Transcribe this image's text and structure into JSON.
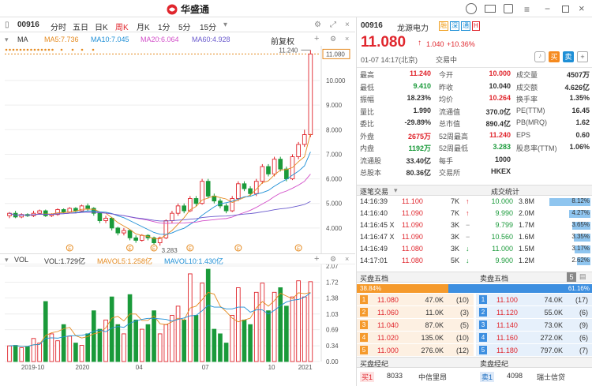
{
  "app": {
    "logo": "华盛通"
  },
  "toolbar": {
    "code": "00916",
    "tabs": [
      "分时",
      "五日",
      "日K",
      "周K",
      "月K",
      "1分",
      "5分",
      "15分"
    ],
    "active": "周K",
    "fq": "前复权"
  },
  "ma": {
    "label": "MA",
    "ma5": "MA5:7.736",
    "ma10": "MA10:7.045",
    "ma20": "MA20:6.064",
    "ma60": "MA60:4.928"
  },
  "vol": {
    "label": "VOL",
    "vol": "VOL:1.729亿",
    "mavol5": "MAVOL5:1.258亿",
    "mavol10": "MAVOL10:1.430亿"
  },
  "chart_data": {
    "type": "candlestick",
    "price_ticks": [
      "11.080",
      "10.000",
      "9.000",
      "8.000",
      "7.000",
      "6.000",
      "5.000",
      "4.000"
    ],
    "price_axis_values": [
      11.08,
      10,
      9,
      8,
      7,
      6,
      5,
      4
    ],
    "vol_ticks": [
      "2.07",
      "1.72",
      "1.38",
      "1.03",
      "0.69",
      "0.34",
      "0.00"
    ],
    "vol_axis_values": [
      2.07,
      1.72,
      1.38,
      1.03,
      0.69,
      0.34,
      0
    ],
    "x_ticks": [
      "2019-10",
      "2020",
      "04",
      "07",
      "10",
      "2021"
    ],
    "high_label": "11.240",
    "low_label": "3.283",
    "last_price": 11.08,
    "y_range": [
      3.0,
      11.35
    ],
    "vol_range": [
      0,
      2.07
    ],
    "candles": [
      [
        4.5,
        4.6,
        4.4,
        4.65
      ],
      [
        4.6,
        4.45,
        4.4,
        4.7
      ],
      [
        4.45,
        4.55,
        4.4,
        4.6
      ],
      [
        4.55,
        4.5,
        4.45,
        4.6
      ],
      [
        4.5,
        4.6,
        4.45,
        4.7
      ],
      [
        4.6,
        4.7,
        4.55,
        4.75
      ],
      [
        4.7,
        4.5,
        4.45,
        4.75
      ],
      [
        4.5,
        4.55,
        4.45,
        4.6
      ],
      [
        4.55,
        4.75,
        4.5,
        4.8
      ],
      [
        4.75,
        4.65,
        4.6,
        4.8
      ],
      [
        4.65,
        4.8,
        4.6,
        4.85
      ],
      [
        4.8,
        4.7,
        4.6,
        4.85
      ],
      [
        4.7,
        4.9,
        4.65,
        4.95
      ],
      [
        4.9,
        4.8,
        4.7,
        5.0
      ],
      [
        4.8,
        4.6,
        4.5,
        4.85
      ],
      [
        4.6,
        4.3,
        4.2,
        4.65
      ],
      [
        4.3,
        4.4,
        4.2,
        4.5
      ],
      [
        4.4,
        4.0,
        3.9,
        4.45
      ],
      [
        4.0,
        3.8,
        3.7,
        4.05
      ],
      [
        3.8,
        3.9,
        3.7,
        4.0
      ],
      [
        3.9,
        3.6,
        3.5,
        3.95
      ],
      [
        3.6,
        3.5,
        3.4,
        3.7
      ],
      [
        3.5,
        3.7,
        3.45,
        3.75
      ],
      [
        3.7,
        3.6,
        3.5,
        3.75
      ],
      [
        3.6,
        3.4,
        3.3,
        3.65
      ],
      [
        3.4,
        3.6,
        3.283,
        3.65
      ],
      [
        3.6,
        4.3,
        3.55,
        4.35
      ],
      [
        4.3,
        4.6,
        4.2,
        4.7
      ],
      [
        4.6,
        4.9,
        4.5,
        5.0
      ],
      [
        4.9,
        4.7,
        4.6,
        5.0
      ],
      [
        4.7,
        5.2,
        4.65,
        5.3
      ],
      [
        5.2,
        5.0,
        4.9,
        5.3
      ],
      [
        5.0,
        5.9,
        4.95,
        6.0
      ],
      [
        5.9,
        5.3,
        5.2,
        6.0
      ],
      [
        5.3,
        5.1,
        5.0,
        5.4
      ],
      [
        5.1,
        4.9,
        4.8,
        5.2
      ],
      [
        4.9,
        4.7,
        4.6,
        5.0
      ],
      [
        4.7,
        5.2,
        4.65,
        5.3
      ],
      [
        5.2,
        5.8,
        5.1,
        5.9
      ],
      [
        5.8,
        5.6,
        5.5,
        5.9
      ],
      [
        5.6,
        5.4,
        5.3,
        5.7
      ],
      [
        5.4,
        5.9,
        5.3,
        6.0
      ],
      [
        5.9,
        6.5,
        5.8,
        6.6
      ],
      [
        6.5,
        6.2,
        6.1,
        6.6
      ],
      [
        6.2,
        6.8,
        6.1,
        6.9
      ],
      [
        6.8,
        6.4,
        6.3,
        6.9
      ],
      [
        6.4,
        6.0,
        5.9,
        6.5
      ],
      [
        6.0,
        6.9,
        5.95,
        7.0
      ],
      [
        6.9,
        7.4,
        6.8,
        7.5
      ],
      [
        7.4,
        7.8,
        7.3,
        8.0
      ],
      [
        7.8,
        11.08,
        7.7,
        11.24
      ]
    ],
    "volumes": [
      0.34,
      0.35,
      0.3,
      0.32,
      0.5,
      0.4,
      1.3,
      0.6,
      0.45,
      0.8,
      0.55,
      0.4,
      0.35,
      0.6,
      1.1,
      0.7,
      0.9,
      1.4,
      0.8,
      0.6,
      1.45,
      0.9,
      0.7,
      0.8,
      1.1,
      0.6,
      0.8,
      1.0,
      1.2,
      0.9,
      1.9,
      1.0,
      1.7,
      2.0,
      0.7,
      0.6,
      0.4,
      1.0,
      1.6,
      0.9,
      0.8,
      1.5,
      1.7,
      1.1,
      1.5,
      1.6,
      1.2,
      1.4,
      1.75,
      1.4,
      1.73
    ]
  },
  "quote": {
    "code": "00916",
    "name": "龙源电力",
    "tags": [
      "融",
      "深",
      "通",
      "H"
    ],
    "price": "11.080",
    "arrow": "↑",
    "change": "1.040",
    "pct": "+10.36%",
    "time": "01-07 14:17(北京)",
    "status": "交易中",
    "btn_buy": "买",
    "btn_sell": "卖",
    "plus": "+"
  },
  "stats": [
    [
      "最高",
      "11.240",
      "今开",
      "10.000",
      "成交量",
      "4507万"
    ],
    [
      "最低",
      "9.410",
      "昨收",
      "10.040",
      "成交额",
      "4.626亿"
    ],
    [
      "振幅",
      "18.23%",
      "均价",
      "10.264",
      "换手率",
      "1.35%"
    ],
    [
      "量比",
      "1.990",
      "流通值",
      "370.0亿",
      "PE(TTM)",
      "16.45"
    ],
    [
      "委比",
      "-29.89%",
      "总市值",
      "890.4亿",
      "PB(MRQ)",
      "1.62"
    ],
    [
      "外盘",
      "2675万",
      "52周最高",
      "11.240",
      "EPS",
      "0.60"
    ],
    [
      "内盘",
      "1192万",
      "52周最低",
      "3.283",
      "股息率(TTM)",
      "1.06%"
    ],
    [
      "流通股",
      "33.40亿",
      "每手",
      "1000",
      "",
      ""
    ],
    [
      "总股本",
      "80.36亿",
      "交易所",
      "HKEX",
      "",
      ""
    ]
  ],
  "trades_header": "逐笔交易",
  "dist_header": "成交统计",
  "trades": [
    [
      "14:16:39",
      "11.100",
      "7K",
      "↑"
    ],
    [
      "14:16:40",
      "11.090",
      "7K",
      "↑"
    ],
    [
      "14:16:45 X",
      "11.090",
      "3K",
      "−"
    ],
    [
      "14:16:47 X",
      "11.090",
      "3K",
      "−"
    ],
    [
      "14:16:49",
      "11.080",
      "3K",
      "↓"
    ],
    [
      "14:17:01",
      "11.080",
      "5K",
      "↓"
    ]
  ],
  "dist": [
    [
      "10.000",
      "3.8M",
      "8.12%",
      0.9
    ],
    [
      "9.990",
      "2.0M",
      "4.27%",
      0.47
    ],
    [
      "9.799",
      "1.7M",
      "3.65%",
      0.4
    ],
    [
      "10.560",
      "1.6M",
      "3.35%",
      0.37
    ],
    [
      "11.000",
      "1.5M",
      "3.17%",
      0.35
    ],
    [
      "9.900",
      "1.2M",
      "2.62%",
      0.29
    ]
  ],
  "book": {
    "buy_title": "买盘五档",
    "sell_title": "卖盘五档",
    "num": "5",
    "buy_pct": "38.84%",
    "sell_pct": "61.16%",
    "buy_ratio": 0.3884,
    "bids": [
      [
        "1",
        "11.080",
        "47.0K",
        "(10)"
      ],
      [
        "2",
        "11.060",
        "11.0K",
        "(3)"
      ],
      [
        "3",
        "11.040",
        "87.0K",
        "(5)"
      ],
      [
        "4",
        "11.020",
        "135.0K",
        "(10)"
      ],
      [
        "5",
        "11.000",
        "276.0K",
        "(12)"
      ]
    ],
    "asks": [
      [
        "1",
        "11.100",
        "74.0K",
        "(17)"
      ],
      [
        "2",
        "11.120",
        "55.0K",
        "(6)"
      ],
      [
        "3",
        "11.140",
        "73.0K",
        "(9)"
      ],
      [
        "4",
        "11.160",
        "272.0K",
        "(6)"
      ],
      [
        "5",
        "11.180",
        "797.0K",
        "(7)"
      ]
    ]
  },
  "brokers": {
    "buy_title": "买盘经纪",
    "sell_title": "卖盘经纪",
    "buy": [
      "买1",
      "8033",
      "中信里昂"
    ],
    "sell": [
      "卖1",
      "4098",
      "瑞士信贷"
    ]
  },
  "colors": {
    "up": "#e0262d",
    "down": "#1a9a3a",
    "ma5": "#e58a1f",
    "ma10": "#1e8fd6",
    "ma20": "#d24ec9",
    "ma60": "#6a5acd"
  }
}
